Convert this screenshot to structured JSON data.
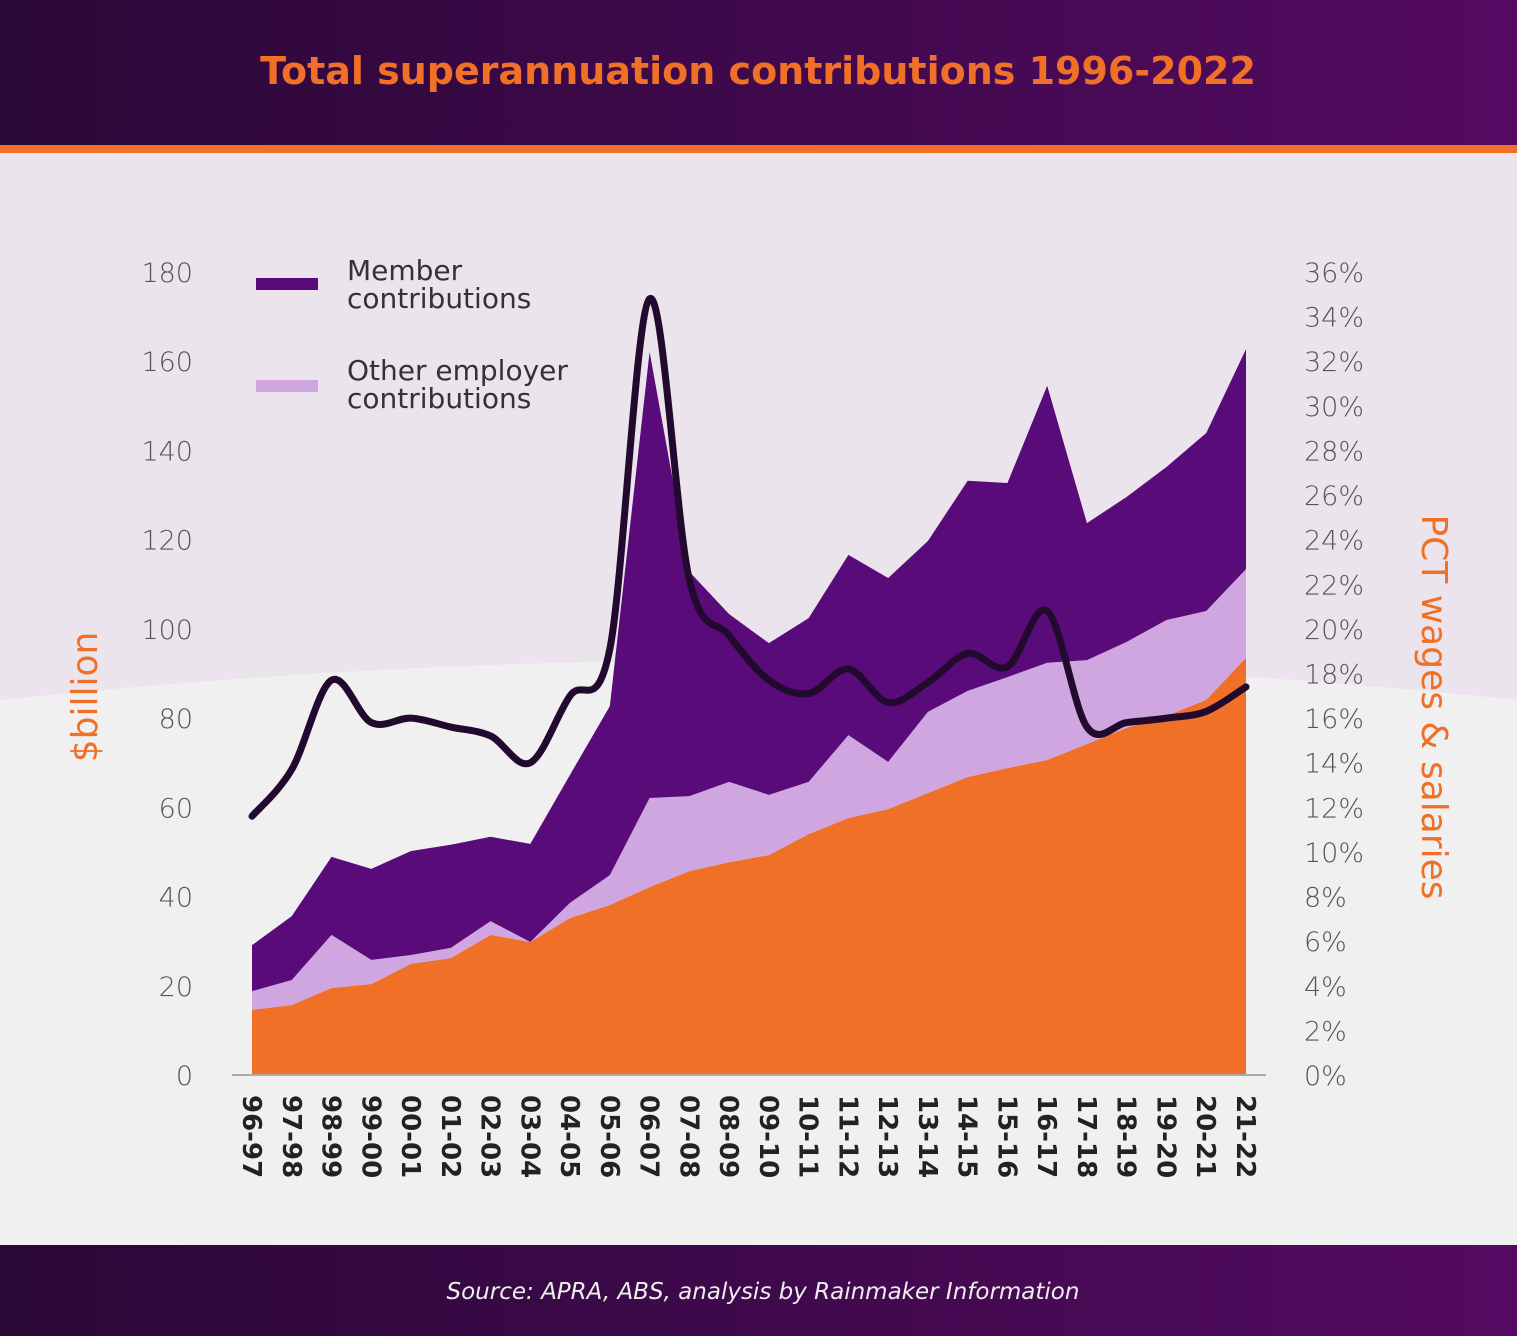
{
  "chart_data": {
    "type": "area",
    "stacked": true,
    "title": "Total superannuation contributions 1996-2022",
    "ylabel": "$billion",
    "y2label": "PCT wages & salaries",
    "ylim": [
      0,
      180
    ],
    "y2lim": [
      0,
      36
    ],
    "yticks": [
      "0",
      "20",
      "40",
      "60",
      "80",
      "100",
      "120",
      "140",
      "160",
      "180"
    ],
    "y2ticks": [
      "0%",
      "2%",
      "4%",
      "6%",
      "8%",
      "10%",
      "12%",
      "14%",
      "16%",
      "18%",
      "20%",
      "22%",
      "24%",
      "26%",
      "28%",
      "30%",
      "32%",
      "34%",
      "36%"
    ],
    "categories": [
      "96-97",
      "97-98",
      "98-99",
      "99-00",
      "00-01",
      "01-02",
      "02-03",
      "03-04",
      "04-05",
      "05-06",
      "06-07",
      "07-08",
      "08-09",
      "09-10",
      "10-11",
      "11-12",
      "12-13",
      "13-14",
      "14-15",
      "15-16",
      "16-17",
      "17-18",
      "18-19",
      "19-20",
      "20-21",
      "21-22"
    ],
    "series": [
      {
        "color": "#f07028",
        "values": [
          14.6,
          15.7,
          19.5,
          20.4,
          24.9,
          26.2,
          31.4,
          29.8,
          35.2,
          38.1,
          42.1,
          45.7,
          47.7,
          49.3,
          54.0,
          57.6,
          59.6,
          63.2,
          66.8,
          68.8,
          70.6,
          74.2,
          77.8,
          80.5,
          84.1,
          93.5
        ]
      },
      {
        "name": "Other employer contributions",
        "color": "#cfa6e0",
        "values": [
          4.2,
          5.6,
          11.9,
          5.4,
          2.0,
          2.3,
          3.1,
          0.0,
          3.4,
          6.7,
          20.0,
          16.8,
          18.0,
          13.5,
          11.7,
          18.6,
          10.6,
          18.2,
          19.3,
          20.4,
          21.8,
          18.8,
          19.3,
          21.5,
          19.9,
          19.9
        ]
      },
      {
        "name": "Member contributions",
        "color": "#5a0b7a",
        "values": [
          10.3,
          14.3,
          17.5,
          20.4,
          23.3,
          23.1,
          18.9,
          22.0,
          28.7,
          37.9,
          100.0,
          50.3,
          37.6,
          34.0,
          36.7,
          40.4,
          41.2,
          38.3,
          47.1,
          43.5,
          62.1,
          30.7,
          32.5,
          34.3,
          39.9,
          49.3
        ]
      }
    ],
    "line": {
      "axis": "right",
      "color": "#220a2e",
      "values": [
        11.6,
        13.7,
        17.7,
        15.8,
        16.0,
        15.6,
        15.2,
        14.0,
        17.0,
        19.1,
        34.8,
        22.2,
        19.7,
        17.7,
        17.1,
        18.2,
        16.7,
        17.6,
        18.9,
        18.3,
        20.8,
        15.6,
        15.8,
        16.0,
        16.3,
        17.4
      ]
    },
    "legend": {
      "placement": "top-left",
      "items": [
        "Member contributions",
        "Other employer contributions"
      ]
    },
    "grid": false
  },
  "legend_text": {
    "member_1": "Member",
    "member_2": "contributions",
    "other_1": "Other employer",
    "other_2": "contributions"
  },
  "source": "Source: APRA, ABS, analysis by Rainmaker Information",
  "colors": {
    "header_dark": "#2a0836",
    "header_light": "#540a62",
    "accent": "#f07028",
    "bg_top": "#ebe4ec",
    "bg_bottom": "#f0f0f0"
  }
}
